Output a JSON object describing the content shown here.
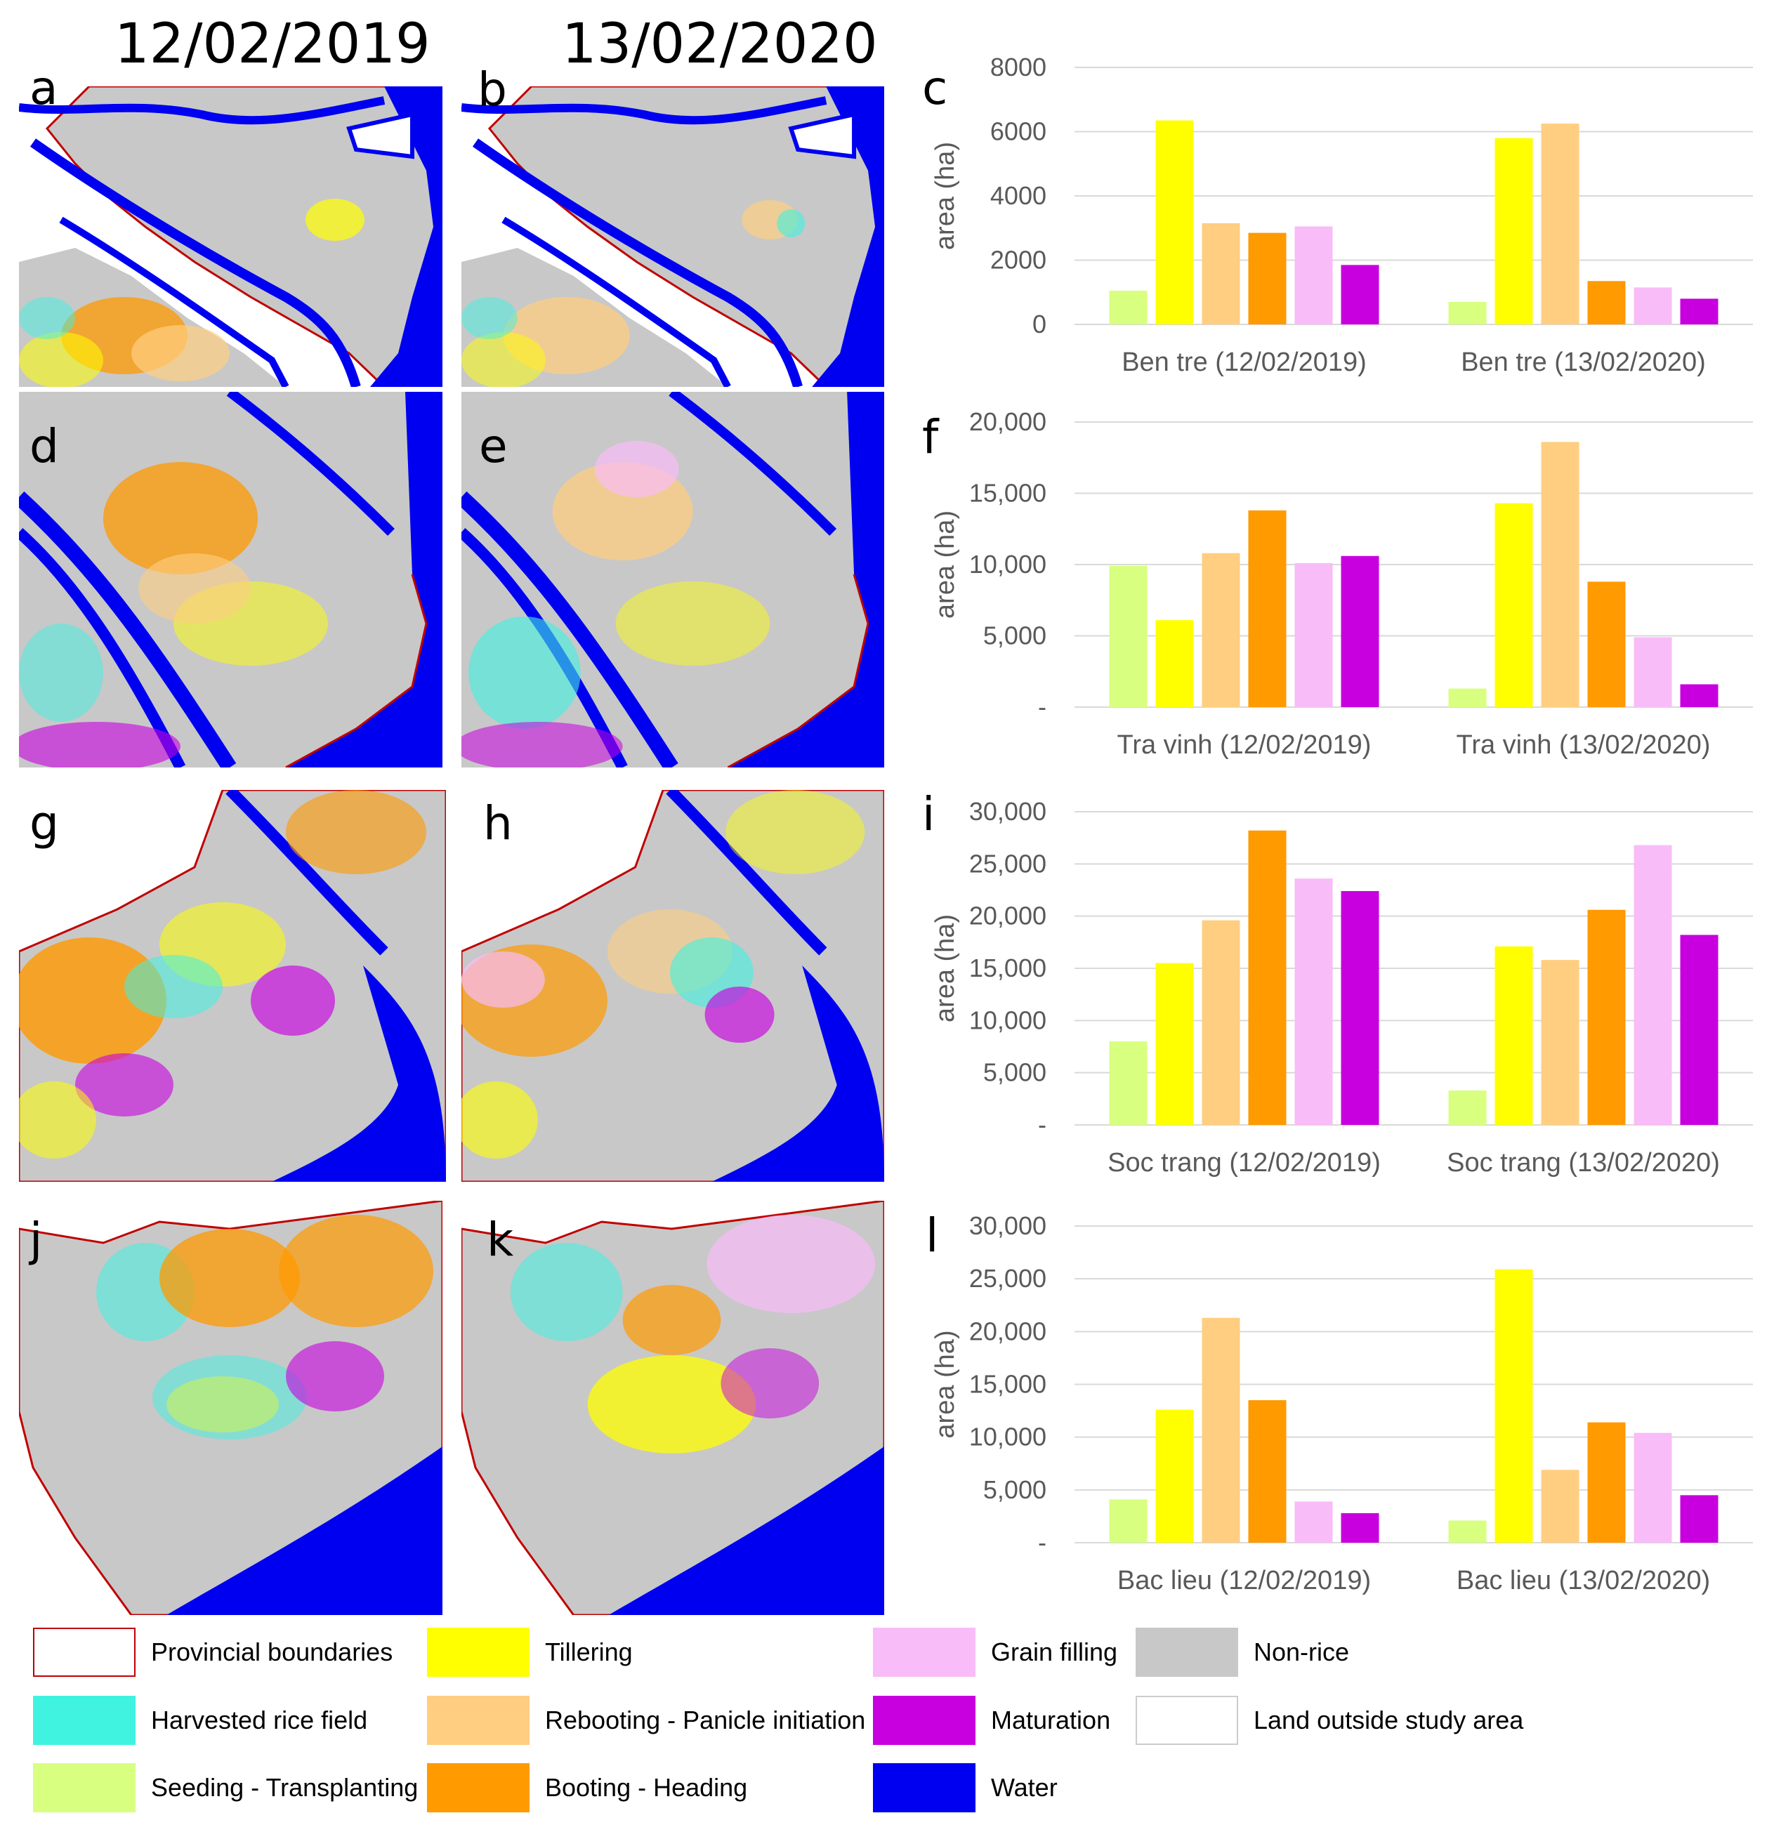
{
  "dates": {
    "left": "12/02/2019",
    "right": "13/02/2020"
  },
  "panels": {
    "a": "a",
    "b": "b",
    "c": "c",
    "d": "d",
    "e": "e",
    "f": "f",
    "g": "g",
    "h": "h",
    "i": "i",
    "j": "j",
    "k": "k",
    "l": "l"
  },
  "legend": {
    "items": [
      {
        "label": "Provincial boundaries",
        "color": "#ffffff",
        "border": "#c00000"
      },
      {
        "label": "Harvested rice field",
        "color": "#40f2e0",
        "border": "#40f2e0"
      },
      {
        "label": "Seeding - Transplanting",
        "color": "#d8ff80",
        "border": "#d8ff80"
      },
      {
        "label": "Tillering",
        "color": "#ffff00",
        "border": "#ffff00"
      },
      {
        "label": "Rebooting - Panicle initiation",
        "color": "#ffce80",
        "border": "#ffce80"
      },
      {
        "label": "Booting - Heading",
        "color": "#ff9a00",
        "border": "#ff9a00"
      },
      {
        "label": "Grain filling",
        "color": "#f8bcf8",
        "border": "#f8bcf8"
      },
      {
        "label": "Maturation",
        "color": "#c800e0",
        "border": "#c800e0"
      },
      {
        "label": "Water",
        "color": "#0000f0",
        "border": "#0000f0"
      },
      {
        "label": "Non-rice",
        "color": "#c8c8c8",
        "border": "#c8c8c8"
      },
      {
        "label": "Land outside study area",
        "color": "#ffffff",
        "border": "#cccccc"
      }
    ]
  },
  "chart_data": [
    {
      "type": "bar",
      "panel": "c",
      "ylabel": "area (ha)",
      "ylim": [
        0,
        8000
      ],
      "yticks": [
        "0",
        "2000",
        "4000",
        "6000",
        "8000"
      ],
      "categories": [
        "Ben tre (12/02/2019)",
        "Ben tre (13/02/2020)"
      ],
      "series": [
        {
          "name": "Seeding - Transplanting",
          "color": "#d8ff80",
          "values": [
            1050,
            700
          ]
        },
        {
          "name": "Tillering",
          "color": "#ffff00",
          "values": [
            6350,
            5800
          ]
        },
        {
          "name": "Rebooting - Panicle initiation",
          "color": "#ffce80",
          "values": [
            3150,
            6250
          ]
        },
        {
          "name": "Booting - Heading",
          "color": "#ff9a00",
          "values": [
            2850,
            1350
          ]
        },
        {
          "name": "Grain filling",
          "color": "#f8bcf8",
          "values": [
            3050,
            1150
          ]
        },
        {
          "name": "Maturation",
          "color": "#c800e0",
          "values": [
            1850,
            800
          ]
        }
      ]
    },
    {
      "type": "bar",
      "panel": "f",
      "ylabel": "area (ha)",
      "ylim": [
        0,
        20000
      ],
      "yticks": [
        "-",
        "5,000",
        "10,000",
        "15,000",
        "20,000"
      ],
      "categories": [
        "Tra vinh (12/02/2019)",
        "Tra vinh (13/02/2020)"
      ],
      "series": [
        {
          "name": "Seeding - Transplanting",
          "color": "#d8ff80",
          "values": [
            9900,
            1300
          ]
        },
        {
          "name": "Tillering",
          "color": "#ffff00",
          "values": [
            6100,
            14300
          ]
        },
        {
          "name": "Rebooting - Panicle initiation",
          "color": "#ffce80",
          "values": [
            10800,
            18600
          ]
        },
        {
          "name": "Booting - Heading",
          "color": "#ff9a00",
          "values": [
            13800,
            8800
          ]
        },
        {
          "name": "Grain filling",
          "color": "#f8bcf8",
          "values": [
            10100,
            4900
          ]
        },
        {
          "name": "Maturation",
          "color": "#c800e0",
          "values": [
            10600,
            1600
          ]
        }
      ]
    },
    {
      "type": "bar",
      "panel": "i",
      "ylabel": "area (ha)",
      "ylim": [
        0,
        30000
      ],
      "yticks": [
        "-",
        "5,000",
        "10,000",
        "15,000",
        "20,000",
        "25,000",
        "30,000"
      ],
      "categories": [
        "Soc trang (12/02/2019)",
        "Soc trang (13/02/2020)"
      ],
      "series": [
        {
          "name": "Seeding - Transplanting",
          "color": "#d8ff80",
          "values": [
            8000,
            3300
          ]
        },
        {
          "name": "Tillering",
          "color": "#ffff00",
          "values": [
            15500,
            17100
          ]
        },
        {
          "name": "Rebooting - Panicle initiation",
          "color": "#ffce80",
          "values": [
            19600,
            15800
          ]
        },
        {
          "name": "Booting - Heading",
          "color": "#ff9a00",
          "values": [
            28200,
            20600
          ]
        },
        {
          "name": "Grain filling",
          "color": "#f8bcf8",
          "values": [
            23600,
            26800
          ]
        },
        {
          "name": "Maturation",
          "color": "#c800e0",
          "values": [
            22400,
            18200
          ]
        }
      ]
    },
    {
      "type": "bar",
      "panel": "l",
      "ylabel": "area (ha)",
      "ylim": [
        0,
        30000
      ],
      "yticks": [
        "-",
        "5,000",
        "10,000",
        "15,000",
        "20,000",
        "25,000",
        "30,000"
      ],
      "categories": [
        "Bac lieu (12/02/2019)",
        "Bac lieu (13/02/2020)"
      ],
      "series": [
        {
          "name": "Seeding - Transplanting",
          "color": "#d8ff80",
          "values": [
            4100,
            2100
          ]
        },
        {
          "name": "Tillering",
          "color": "#ffff00",
          "values": [
            12600,
            25900
          ]
        },
        {
          "name": "Rebooting - Panicle initiation",
          "color": "#ffce80",
          "values": [
            21300,
            6900
          ]
        },
        {
          "name": "Booting - Heading",
          "color": "#ff9a00",
          "values": [
            13500,
            11400
          ]
        },
        {
          "name": "Grain filling",
          "color": "#f8bcf8",
          "values": [
            3900,
            10400
          ]
        },
        {
          "name": "Maturation",
          "color": "#c800e0",
          "values": [
            2800,
            4500
          ]
        }
      ]
    }
  ]
}
